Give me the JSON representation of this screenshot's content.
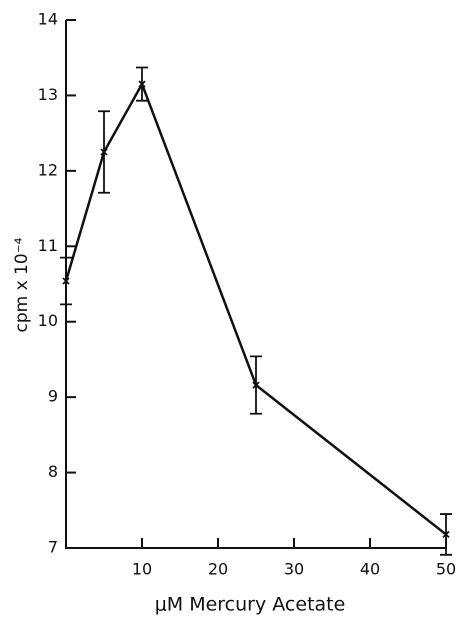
{
  "chart_data": {
    "type": "line",
    "x_label": "μM Mercury Acetate",
    "y_label": "cpm x 10⁻⁴",
    "x": [
      0,
      5,
      10,
      25,
      50
    ],
    "series": [
      {
        "color": "#111111",
        "values": [
          10.54,
          12.25,
          13.15,
          9.16,
          7.18
        ],
        "errors": [
          0.31,
          0.54,
          0.22,
          0.38,
          0.27
        ]
      }
    ],
    "xlim": [
      0,
      50
    ],
    "xticks": [
      10,
      20,
      30,
      40,
      50
    ],
    "ylim": [
      7,
      14
    ],
    "yticks": [
      7,
      8,
      9,
      10,
      11,
      12,
      13,
      14
    ]
  }
}
